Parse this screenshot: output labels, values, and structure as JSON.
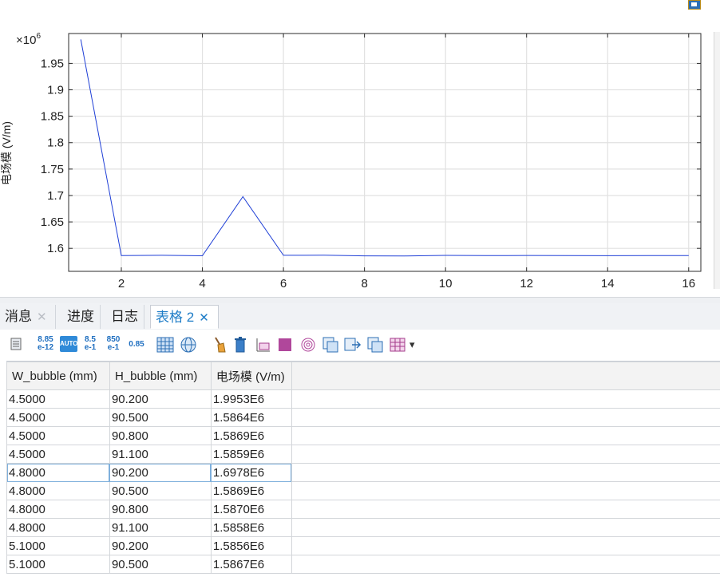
{
  "chart_data": {
    "type": "line",
    "title": "",
    "xlabel": "",
    "ylabel": "电场模 (V/m)",
    "y_multiplier": "×10",
    "y_multiplier_exponent": "6",
    "xlim": [
      0.7,
      16.3
    ],
    "ylim": [
      1.5565,
      2.0065
    ],
    "x_ticks": [
      2,
      4,
      6,
      8,
      10,
      12,
      14,
      16
    ],
    "y_ticks": [
      1.6,
      1.65,
      1.7,
      1.75,
      1.8,
      1.85,
      1.9,
      1.95
    ],
    "y_tick_labels": [
      "1.6",
      "1.65",
      "1.7",
      "1.75",
      "1.8",
      "1.85",
      "1.9",
      "1.95"
    ],
    "grid": true,
    "line_color": "#1f3fd6",
    "series": [
      {
        "x": [
          1,
          2,
          3,
          4,
          5,
          6,
          7,
          8,
          9,
          10,
          11,
          12,
          13,
          14,
          15,
          16
        ],
        "y": [
          1.9953,
          1.5864,
          1.5869,
          1.5859,
          1.6978,
          1.5869,
          1.587,
          1.5858,
          1.5856,
          1.5867,
          1.5862,
          1.5865,
          1.5863,
          1.5861,
          1.5862,
          1.5864
        ]
      }
    ]
  },
  "tabs": [
    {
      "label": "消息",
      "close": "✕"
    },
    {
      "label": "进度",
      "close": ""
    },
    {
      "label": "日志",
      "close": ""
    },
    {
      "label": "表格 2",
      "close": "✕"
    }
  ],
  "toolbar": {
    "sci_top": "8.85",
    "sci_bottom": "e-12",
    "auto": "AUTO",
    "eng_top": "8.5",
    "eng_bottom": "e-1",
    "eng2_top": "850",
    "eng2_bottom": "e-1",
    "decimal": "0.85",
    "dropdown": "▾"
  },
  "table": {
    "columns": [
      "W_bubble (mm)",
      "H_bubble (mm)",
      "电场模 (V/m)"
    ],
    "rows": [
      [
        "4.5000",
        "90.200",
        "1.9953E6"
      ],
      [
        "4.5000",
        "90.500",
        "1.5864E6"
      ],
      [
        "4.5000",
        "90.800",
        "1.5869E6"
      ],
      [
        "4.5000",
        "91.100",
        "1.5859E6"
      ],
      [
        "4.8000",
        "90.200",
        "1.6978E6"
      ],
      [
        "4.8000",
        "90.500",
        "1.5869E6"
      ],
      [
        "4.8000",
        "90.800",
        "1.5870E6"
      ],
      [
        "4.8000",
        "91.100",
        "1.5858E6"
      ],
      [
        "5.1000",
        "90.200",
        "1.5856E6"
      ],
      [
        "5.1000",
        "90.500",
        "1.5867E6"
      ]
    ],
    "selected_row": 4
  }
}
